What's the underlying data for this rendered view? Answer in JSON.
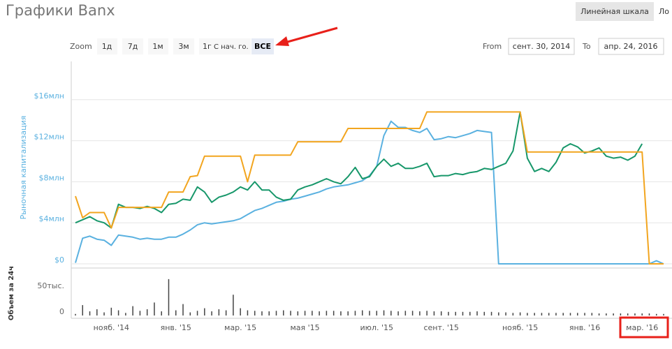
{
  "title": "Графики Banx",
  "scale_buttons": [
    "Линейная шкала",
    "Ло"
  ],
  "zoom": {
    "label": "Zoom",
    "buttons": [
      "1д",
      "7д",
      "1м",
      "3м",
      "1г",
      "С нач. го.",
      "ВСЕ"
    ]
  },
  "range": {
    "from_label": "From",
    "from": "сент. 30, 2014",
    "to_label": "To",
    "to": "апр. 24, 2016"
  },
  "chart_data": [
    {
      "type": "line",
      "ylabel": "Рыночная капитализация",
      "categories": [
        null,
        null,
        null,
        null,
        null,
        "нояб. '14",
        null,
        null,
        null,
        null,
        null,
        null,
        null,
        null,
        "янв. '15",
        null,
        null,
        null,
        null,
        null,
        null,
        null,
        null,
        "мар. '15",
        null,
        null,
        null,
        null,
        null,
        null,
        null,
        null,
        "мая '15",
        null,
        null,
        null,
        null,
        null,
        null,
        null,
        null,
        null,
        "июл. '15",
        null,
        null,
        null,
        null,
        null,
        null,
        null,
        null,
        "сент. '15",
        null,
        null,
        null,
        null,
        null,
        null,
        null,
        null,
        null,
        null,
        "нояб. '15",
        null,
        null,
        null,
        null,
        null,
        null,
        null,
        null,
        "янв. '16",
        null,
        null,
        null,
        null,
        null,
        null,
        null,
        "мар. '16",
        null,
        null,
        null
      ],
      "series": [
        {
          "color": "#5ab1e0",
          "values": [
            0.1,
            2.5,
            2.7,
            2.4,
            2.3,
            1.8,
            2.8,
            2.7,
            2.6,
            2.4,
            2.5,
            2.4,
            2.4,
            2.6,
            2.6,
            2.9,
            3.3,
            3.8,
            4.0,
            3.9,
            4.0,
            4.1,
            4.2,
            4.4,
            4.8,
            5.2,
            5.4,
            5.7,
            6.0,
            6.1,
            6.3,
            6.4,
            6.6,
            6.8,
            7.0,
            7.3,
            7.5,
            7.6,
            7.7,
            7.9,
            8.1,
            8.6,
            9.5,
            12.5,
            13.9,
            13.3,
            13.3,
            13.0,
            12.8,
            13.2,
            12.1,
            12.2,
            12.4,
            12.3,
            12.5,
            12.7,
            13.0,
            12.9,
            12.8,
            0,
            0,
            0,
            0,
            0,
            0,
            0,
            0,
            0,
            0,
            0,
            0,
            0,
            0,
            0,
            0,
            0,
            0,
            0,
            0,
            0,
            0,
            0.3,
            0
          ]
        },
        {
          "color": "#17976a",
          "values": [
            4.0,
            4.3,
            4.6,
            4.2,
            4.0,
            3.5,
            5.8,
            5.5,
            5.5,
            5.4,
            5.6,
            5.4,
            5.0,
            5.8,
            5.9,
            6.3,
            6.2,
            7.5,
            7.0,
            6.0,
            6.5,
            6.7,
            7.0,
            7.5,
            7.2,
            8.0,
            7.2,
            7.2,
            6.5,
            6.2,
            6.3,
            7.2,
            7.5,
            7.7,
            8.0,
            8.3,
            8.0,
            7.8,
            8.5,
            9.4,
            8.3,
            8.5,
            9.5,
            10.2,
            9.5,
            9.8,
            9.3,
            9.3,
            9.5,
            9.8,
            8.5,
            8.6,
            8.6,
            8.8,
            8.7,
            8.9,
            9.0,
            9.3,
            9.2,
            9.5,
            9.8,
            11.0,
            14.8,
            10.3,
            9.0,
            9.3,
            9.0,
            9.9,
            11.3,
            11.7,
            11.4,
            10.8,
            11.0,
            11.3,
            10.5,
            10.3,
            10.4,
            10.1,
            10.5,
            11.7,
            null,
            null,
            null
          ]
        },
        {
          "color": "#f2a51f",
          "values": [
            6.6,
            4.5,
            5.0,
            5.0,
            5.0,
            3.5,
            5.5,
            5.5,
            5.5,
            5.5,
            5.5,
            5.5,
            5.5,
            7.0,
            7.0,
            7.0,
            8.5,
            8.6,
            10.5,
            10.5,
            10.5,
            10.5,
            10.5,
            10.5,
            8.0,
            10.6,
            10.6,
            10.6,
            10.6,
            10.6,
            10.6,
            11.9,
            11.9,
            11.9,
            11.9,
            11.9,
            11.9,
            11.9,
            13.2,
            13.2,
            13.2,
            13.2,
            13.2,
            13.2,
            13.2,
            13.2,
            13.2,
            13.2,
            13.2,
            14.8,
            14.8,
            14.8,
            14.8,
            14.8,
            14.8,
            14.8,
            14.8,
            14.8,
            14.8,
            14.8,
            14.8,
            14.8,
            14.8,
            10.9,
            10.9,
            10.9,
            10.9,
            10.9,
            10.9,
            10.9,
            10.9,
            10.9,
            10.9,
            10.9,
            10.9,
            10.9,
            10.9,
            10.9,
            10.9,
            10.9,
            0,
            0,
            0
          ]
        }
      ],
      "ylim": [
        0,
        20
      ],
      "yticks": [
        {
          "value": 0,
          "label": "$0"
        },
        {
          "value": 4,
          "label": "$4млн"
        },
        {
          "value": 8,
          "label": "$8млн"
        },
        {
          "value": 12,
          "label": "$12млн"
        },
        {
          "value": 16,
          "label": "$16млн"
        }
      ],
      "grid": true
    },
    {
      "type": "bar",
      "ylabel": "Объем за 24ч",
      "color": "#444444",
      "values": [
        3,
        20,
        8,
        12,
        6,
        15,
        10,
        5,
        18,
        9,
        12,
        25,
        8,
        70,
        10,
        22,
        6,
        9,
        14,
        8,
        12,
        10,
        40,
        14,
        10,
        9,
        8,
        8,
        9,
        10,
        9,
        8,
        9,
        9,
        8,
        9,
        9,
        8,
        8,
        9,
        10,
        9,
        9,
        10,
        9,
        8,
        9,
        9,
        8,
        9,
        8,
        8,
        7,
        7,
        7,
        7,
        8,
        7,
        7,
        6,
        6,
        5,
        6,
        5,
        5,
        5,
        5,
        5,
        5,
        5,
        5,
        5,
        5,
        4,
        4,
        4,
        4,
        4,
        4,
        4,
        4,
        3,
        3
      ],
      "ylim": [
        0,
        90
      ],
      "yticks": [
        0,
        {
          "value": 50,
          "label": "50тыс."
        }
      ]
    }
  ]
}
